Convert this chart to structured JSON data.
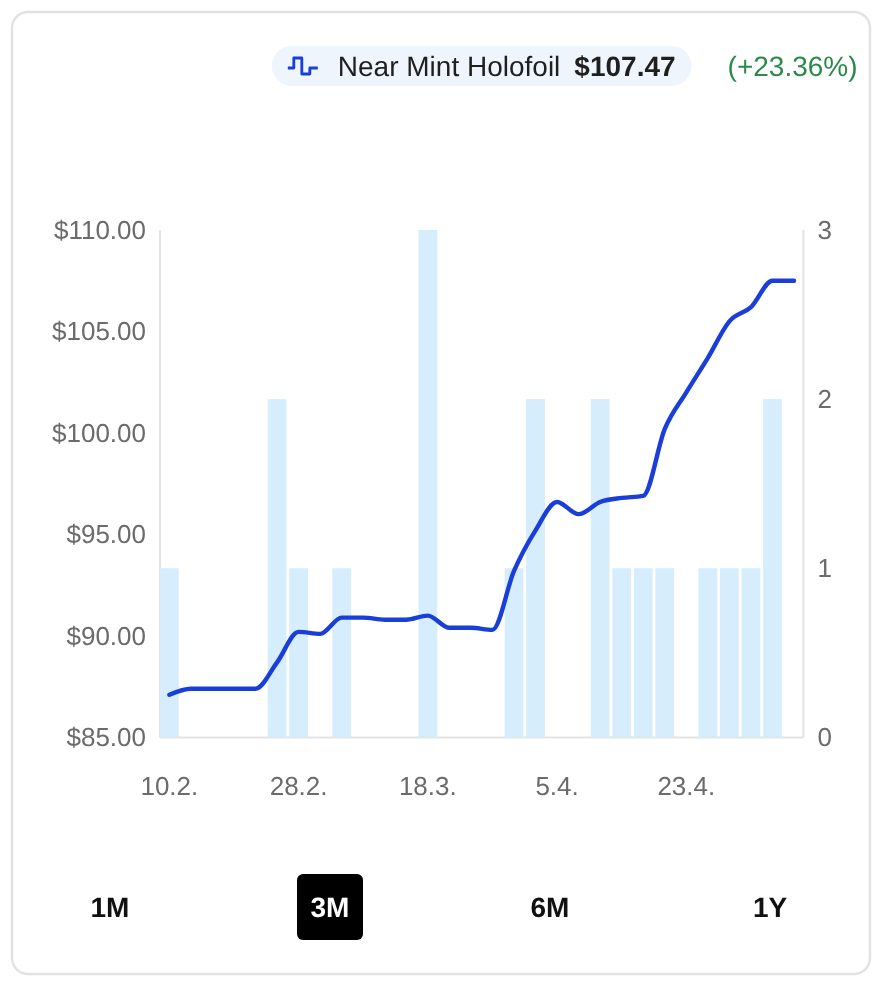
{
  "chart_data": {
    "type": "bar",
    "categories": [
      "10.2.",
      null,
      null,
      null,
      null,
      null,
      "28.2.",
      null,
      null,
      null,
      null,
      null,
      "18.3.",
      null,
      null,
      null,
      null,
      null,
      "5.4.",
      null,
      null,
      null,
      null,
      null,
      "23.4.",
      null,
      null,
      null,
      null,
      null
    ],
    "series": [
      {
        "axis": "y2",
        "color": "#d5edfc",
        "values": [
          1,
          0,
          0,
          0,
          0,
          2,
          1,
          0,
          1,
          0,
          0,
          0,
          3,
          0,
          0,
          0,
          1,
          2,
          0,
          0,
          2,
          1,
          1,
          1,
          0,
          1,
          1,
          1,
          2,
          0
        ]
      },
      {
        "type": "line",
        "name": "Near Mint Holofoil",
        "color": "#1a3fd8",
        "values": [
          87.1,
          87.4,
          87.4,
          87.4,
          87.4,
          88.7,
          90.2,
          90.1,
          90.9,
          90.9,
          90.8,
          90.8,
          91.0,
          90.4,
          90.4,
          90.3,
          93.2,
          95.2,
          96.6,
          96.0,
          96.6,
          96.8,
          96.9,
          100.2,
          102.0,
          103.7,
          105.5,
          106.2,
          107.5,
          107.5
        ]
      }
    ],
    "ylim": [
      85,
      110
    ],
    "yticks": [
      {
        "value": 85,
        "label": "$85.00"
      },
      {
        "value": 90,
        "label": "$90.00"
      },
      {
        "value": 95,
        "label": "$95.00"
      },
      {
        "value": 100,
        "label": "$100.00"
      },
      {
        "value": 105,
        "label": "$105.00"
      },
      {
        "value": 110,
        "label": "$110.00"
      }
    ],
    "y2lim": [
      0,
      3
    ],
    "y2ticks": [
      0,
      1,
      2,
      3
    ],
    "legend": "top",
    "annotations": [
      "$107.47",
      "(+23.36%)",
      "1M",
      "3M",
      "6M",
      "1Y"
    ]
  }
}
